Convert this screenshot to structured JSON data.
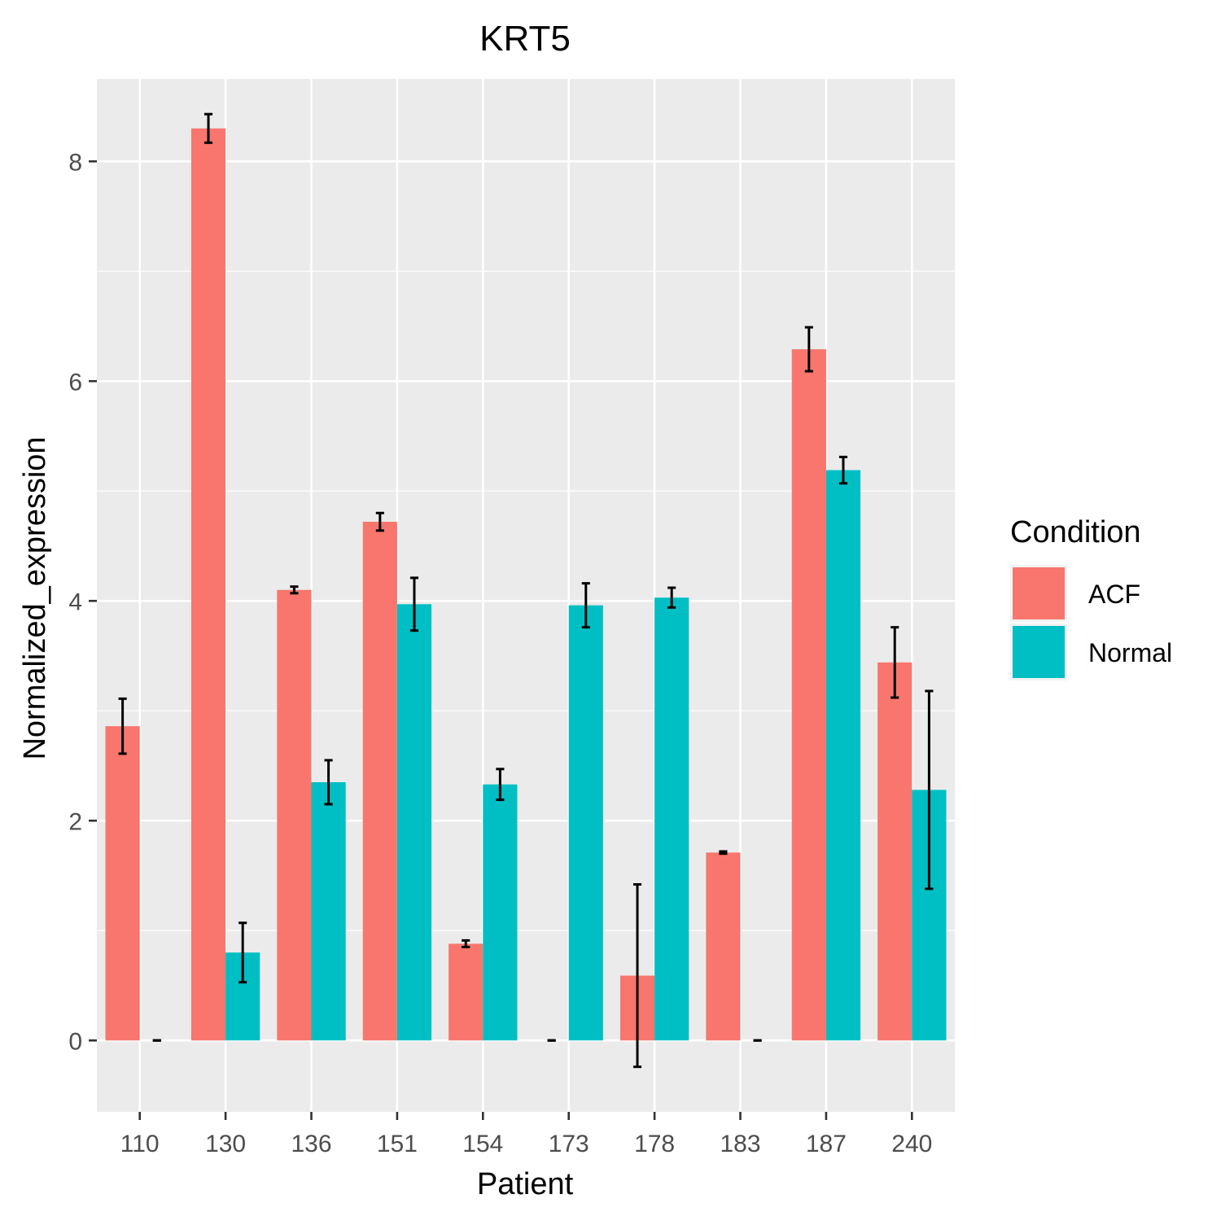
{
  "chart_data": {
    "type": "bar",
    "title": "KRT5",
    "xlabel": "Patient",
    "ylabel": "Normalized_expression",
    "categories": [
      "110",
      "130",
      "136",
      "151",
      "154",
      "173",
      "178",
      "183",
      "187",
      "240"
    ],
    "ylim": [
      -0.65,
      8.75
    ],
    "yticks": [
      0,
      2,
      4,
      6,
      8
    ],
    "ytick_labels": [
      "0",
      "2",
      "4",
      "6",
      "8"
    ],
    "grid": true,
    "legend": {
      "title": "Condition",
      "placement": "right"
    },
    "series": [
      {
        "name": "ACF",
        "color": "#f8766d",
        "values": [
          2.86,
          8.3,
          4.1,
          4.72,
          0.88,
          0.0,
          0.59,
          1.71,
          6.29,
          3.44
        ],
        "error_low": [
          2.61,
          8.17,
          4.07,
          4.64,
          0.85,
          0.0,
          -0.24,
          1.7,
          6.09,
          3.12
        ],
        "error_high": [
          3.11,
          8.43,
          4.13,
          4.8,
          0.91,
          0.0,
          1.42,
          1.72,
          6.49,
          3.76
        ]
      },
      {
        "name": "Normal",
        "color": "#00bfc4",
        "values": [
          0.0,
          0.8,
          2.35,
          3.97,
          2.33,
          3.96,
          4.03,
          0.0,
          5.19,
          2.28
        ],
        "error_low": [
          0.0,
          0.53,
          2.15,
          3.73,
          2.19,
          3.76,
          3.94,
          0.0,
          5.07,
          1.38
        ],
        "error_high": [
          0.0,
          1.07,
          2.55,
          4.21,
          2.47,
          4.16,
          4.12,
          0.0,
          5.31,
          3.18
        ]
      }
    ]
  }
}
